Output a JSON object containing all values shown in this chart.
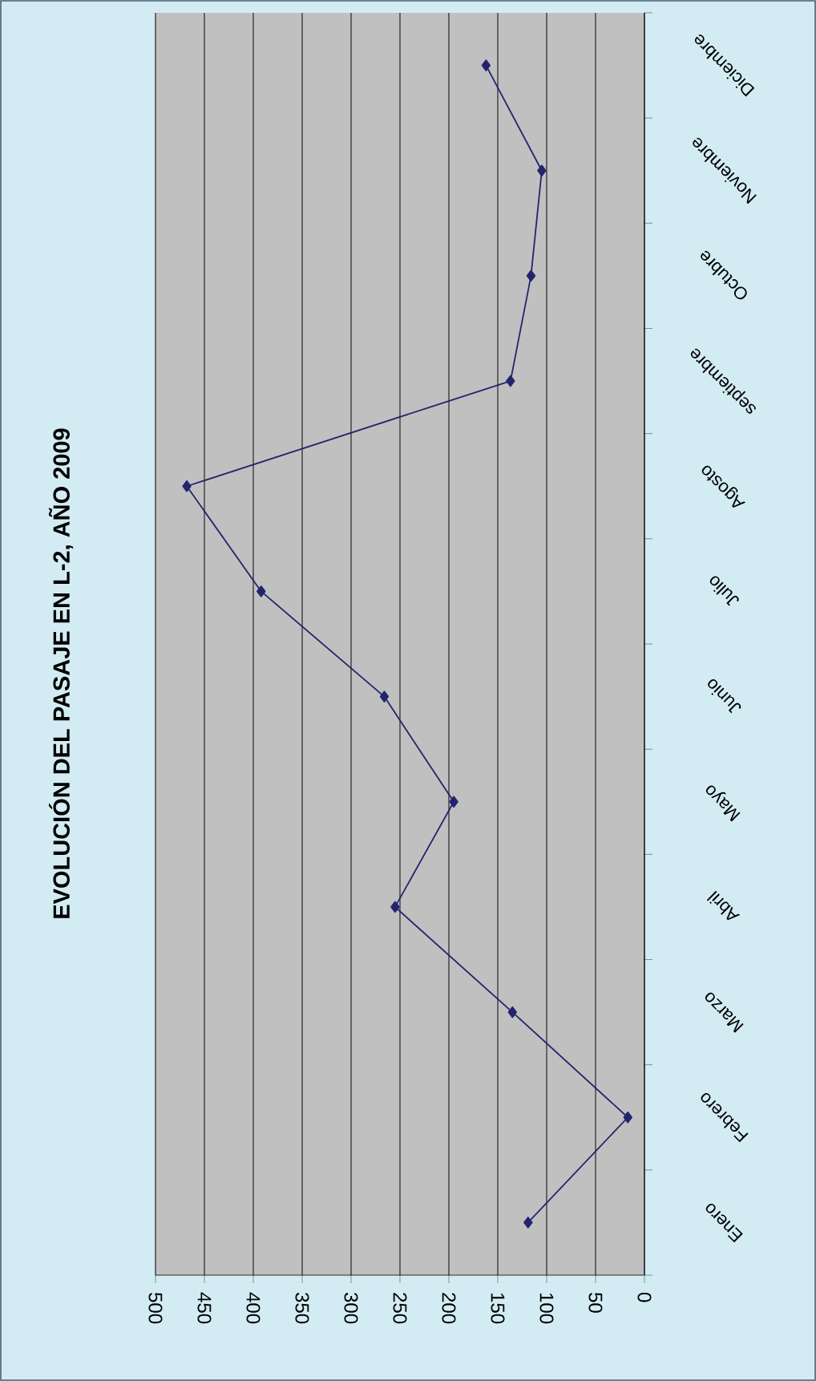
{
  "chart_data": {
    "type": "line",
    "title": "EVOLUCIÓN DEL PASAJE EN L-2, AÑO 2009",
    "orientation": "horizontal",
    "categories": [
      "Diciembre",
      "Noviembre",
      "Octubre",
      "septiembre",
      "Agosto",
      "Julio",
      "Junio",
      "Mayo",
      "Abril",
      "Marzo",
      "Febrero",
      "Enero"
    ],
    "series": [
      {
        "color": "#24246e",
        "values": [
          162,
          105,
          116,
          137,
          468,
          392,
          266,
          195,
          255,
          135,
          17,
          119
        ]
      }
    ],
    "xlim": [
      500,
      0
    ],
    "xticks": [
      500,
      450,
      400,
      350,
      300,
      250,
      200,
      150,
      100,
      50,
      0
    ],
    "grid": "x",
    "marker": "diamond",
    "line_style": "solid"
  }
}
